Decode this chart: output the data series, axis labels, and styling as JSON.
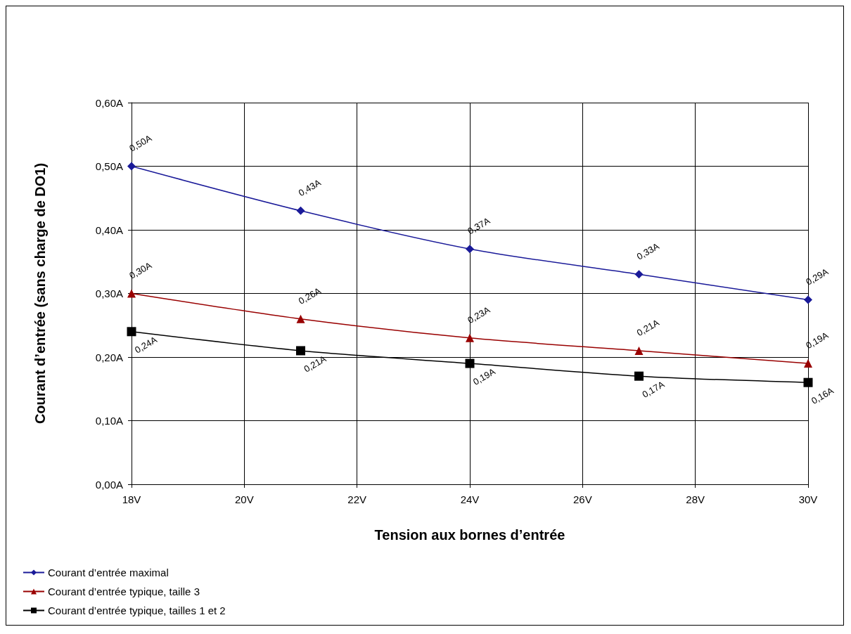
{
  "chart_data": {
    "type": "line",
    "xlabel": "Tension aux bornes d’entrée",
    "ylabel": "Courant d’entrée (sans charge de DO1)",
    "x": [
      18,
      21,
      24,
      27,
      30
    ],
    "xlim": [
      18,
      30
    ],
    "xticks": [
      {
        "value": 18,
        "label": "18V"
      },
      {
        "value": 20,
        "label": "20V"
      },
      {
        "value": 22,
        "label": "22V"
      },
      {
        "value": 24,
        "label": "24V"
      },
      {
        "value": 26,
        "label": "26V"
      },
      {
        "value": 28,
        "label": "28V"
      },
      {
        "value": 30,
        "label": "30V"
      }
    ],
    "ylim": [
      0,
      0.6
    ],
    "yticks": [
      {
        "value": 0,
        "label": "0,00A"
      },
      {
        "value": 0.1,
        "label": "0,10A"
      },
      {
        "value": 0.2,
        "label": "0,20A"
      },
      {
        "value": 0.3,
        "label": "0,30A"
      },
      {
        "value": 0.4,
        "label": "0,40A"
      },
      {
        "value": 0.5,
        "label": "0,50A"
      },
      {
        "value": 0.6,
        "label": "0,60A"
      }
    ],
    "grid": true,
    "legend": "bottom left",
    "series": [
      {
        "name": "Courant d’entrée maximal",
        "color": "#1a1a99",
        "marker": "diamond",
        "values": [
          0.5,
          0.43,
          0.37,
          0.33,
          0.29
        ],
        "value_labels": [
          "0,50A",
          "0,43A",
          "0,37A",
          "0,33A",
          "0,29A"
        ]
      },
      {
        "name": "Courant d’entrée typique, taille 3",
        "color": "#990000",
        "marker": "triangle",
        "values": [
          0.3,
          0.26,
          0.23,
          0.21,
          0.19
        ],
        "value_labels": [
          "0,30A",
          "0,26A",
          "0,23A",
          "0,21A",
          "0,19A"
        ]
      },
      {
        "name": "Courant d’entrée typique, tailles 1 et 2",
        "color": "#000000",
        "marker": "square",
        "values": [
          0.24,
          0.21,
          0.19,
          0.17,
          0.16
        ],
        "value_labels": [
          "0,24A",
          "0,21A",
          "0,19A",
          "0,17A",
          "0,16A"
        ]
      }
    ]
  }
}
